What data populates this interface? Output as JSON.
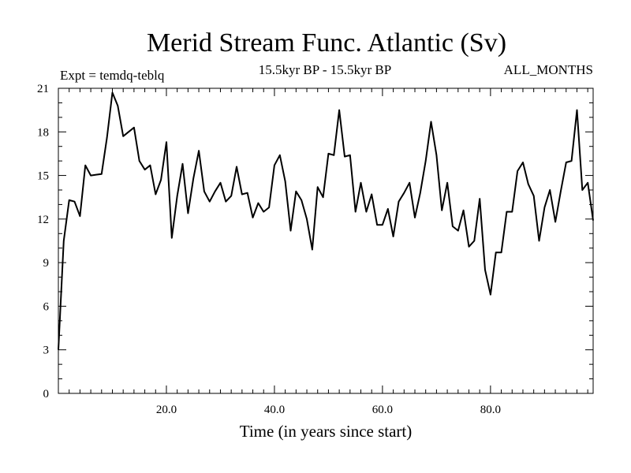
{
  "chart_data": {
    "type": "line",
    "title": "Merid Stream Func. Atlantic (Sv)",
    "subtitle_left": "Expt = temdq-teblq",
    "subtitle_center": "15.5kyr BP - 15.5kyr BP",
    "subtitle_right": "ALL_MONTHS",
    "xlabel": "Time (in years since start)",
    "ylabel": "",
    "xlim": [
      0,
      99
    ],
    "ylim": [
      0,
      21
    ],
    "xticks": [
      20,
      40,
      60,
      80
    ],
    "xtick_labels": [
      "20.0",
      "40.0",
      "60.0",
      "80.0"
    ],
    "yticks": [
      0,
      3,
      6,
      9,
      12,
      15,
      18,
      21
    ],
    "ytick_labels": [
      "0",
      "3",
      "6",
      "9",
      "12",
      "15",
      "18",
      "21"
    ],
    "line_color": "#000000",
    "series": [
      {
        "name": "Merid Stream Func. Atlantic",
        "x": [
          0,
          1,
          2,
          3,
          4,
          5,
          6,
          7,
          8,
          9,
          10,
          11,
          12,
          13,
          14,
          15,
          16,
          17,
          18,
          19,
          20,
          21,
          22,
          23,
          24,
          25,
          26,
          27,
          28,
          29,
          30,
          31,
          32,
          33,
          34,
          35,
          36,
          37,
          38,
          39,
          40,
          41,
          42,
          43,
          44,
          45,
          46,
          47,
          48,
          49,
          50,
          51,
          52,
          53,
          54,
          55,
          56,
          57,
          58,
          59,
          60,
          61,
          62,
          63,
          64,
          65,
          66,
          67,
          68,
          69,
          70,
          71,
          72,
          73,
          74,
          75,
          76,
          77,
          78,
          79,
          80,
          81,
          82,
          83,
          84,
          85,
          86,
          87,
          88,
          89,
          90,
          91,
          92,
          93,
          94,
          95,
          96,
          97,
          98,
          99
        ],
        "values": [
          3.0,
          10.5,
          13.3,
          13.2,
          12.2,
          15.7,
          15.0,
          15.05,
          15.1,
          17.6,
          20.7,
          19.8,
          17.7,
          18.0,
          18.3,
          16.0,
          15.4,
          15.7,
          13.7,
          14.7,
          17.3,
          10.7,
          13.6,
          15.8,
          12.4,
          14.8,
          16.7,
          13.9,
          13.2,
          13.9,
          14.5,
          13.2,
          13.6,
          15.6,
          13.7,
          13.8,
          12.1,
          13.1,
          12.5,
          12.8,
          15.7,
          16.4,
          14.6,
          11.2,
          13.9,
          13.3,
          12.0,
          9.9,
          14.2,
          13.5,
          16.5,
          16.4,
          19.5,
          16.3,
          16.4,
          12.5,
          14.5,
          12.5,
          13.7,
          11.6,
          11.6,
          12.7,
          10.8,
          13.2,
          13.8,
          14.5,
          12.1,
          13.8,
          16.0,
          18.7,
          16.4,
          12.6,
          14.5,
          11.5,
          11.2,
          12.6,
          10.1,
          10.5,
          13.4,
          8.5,
          6.8,
          9.7,
          9.7,
          12.5,
          12.5,
          15.3,
          15.9,
          14.4,
          13.6,
          10.5,
          12.8,
          14.0,
          11.8,
          13.9,
          15.9,
          16.0,
          19.5,
          14.0,
          14.5,
          11.9
        ]
      }
    ]
  }
}
